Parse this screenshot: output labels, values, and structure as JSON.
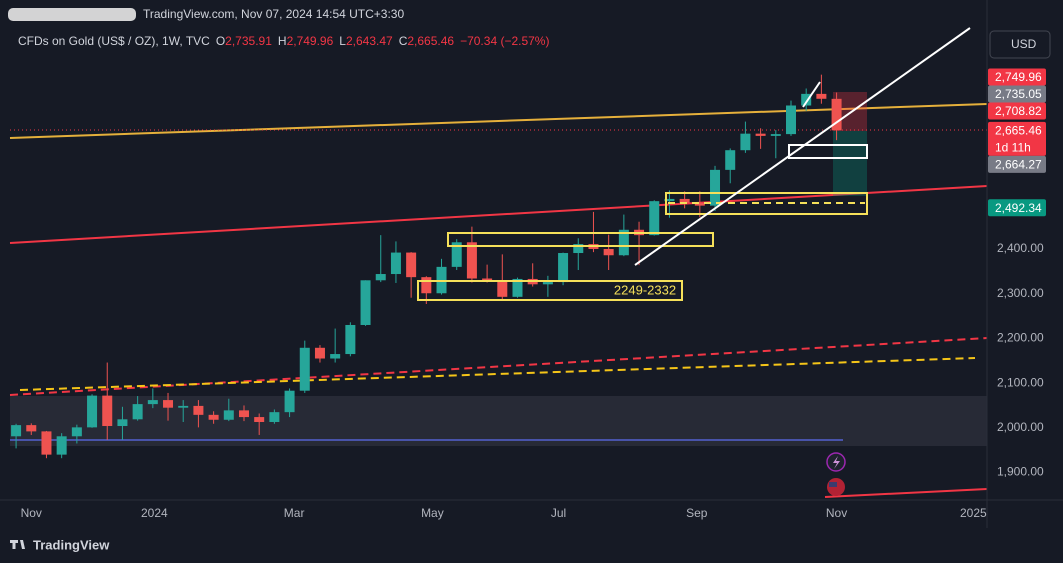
{
  "chart_data": {
    "type": "candlestick",
    "header": "TradingView.com, Nov 07, 2024 14:54 UTC+3:30",
    "legend": {
      "name": "CFDs on Gold (US$ / OZ), 1W, TVC",
      "ohlc": [
        {
          "key": "O",
          "value": "2,735.91"
        },
        {
          "key": "H",
          "value": "2,749.96"
        },
        {
          "key": "L",
          "value": "2,643.47"
        },
        {
          "key": "C",
          "value": "2,665.46"
        }
      ],
      "change": "−70.34 (−2.57%)"
    },
    "currency": "USD",
    "annotation": "2249-2332",
    "footer": "TradingView",
    "up_color": "#26a69a",
    "down_color": "#ef5350",
    "open": [
      1981,
      2006,
      1992,
      1940,
      1981,
      2001,
      2072,
      2004,
      2019,
      2053,
      2062,
      2045,
      2049,
      2029,
      2018,
      2039,
      2024,
      2013,
      2035,
      2083,
      2179,
      2155,
      2165,
      2230,
      2330,
      2344,
      2392,
      2337,
      2301,
      2360,
      2415,
      2334,
      2327,
      2293,
      2333,
      2321,
      2326,
      2391,
      2411,
      2400,
      2386,
      2443,
      2431,
      2507,
      2512,
      2503,
      2497,
      2577,
      2621,
      2658,
      2653,
      2657,
      2721,
      2747,
      2735.91
    ],
    "high": [
      2009,
      2010,
      1993,
      1988,
      2007,
      2075,
      2146,
      2047,
      2071,
      2088,
      2078,
      2062,
      2062,
      2037,
      2065,
      2050,
      2032,
      2041,
      2088,
      2195,
      2185,
      2222,
      2236,
      2330,
      2431,
      2417,
      2393,
      2339,
      2378,
      2422,
      2450,
      2365,
      2388,
      2336,
      2368,
      2340,
      2392,
      2424,
      2483,
      2432,
      2477,
      2461,
      2509,
      2531,
      2529,
      2529,
      2586,
      2625,
      2685,
      2670,
      2666,
      2732,
      2759,
      2790,
      2749.96
    ],
    "low": [
      1954,
      1984,
      1932,
      1932,
      1965,
      2000,
      1973,
      1973,
      2016,
      2044,
      2016,
      2013,
      2001,
      2009,
      2015,
      2015,
      1984,
      2009,
      2024,
      2078,
      2146,
      2146,
      2160,
      2228,
      2326,
      2324,
      2291,
      2277,
      2298,
      2353,
      2325,
      2325,
      2286,
      2291,
      2316,
      2293,
      2319,
      2353,
      2393,
      2353,
      2384,
      2364,
      2430,
      2470,
      2491,
      2471,
      2485,
      2547,
      2615,
      2624,
      2603,
      2653,
      2709,
      2725,
      2643.47
    ],
    "close": [
      2006,
      1992,
      1940,
      1981,
      2001,
      2072,
      2004,
      2019,
      2053,
      2062,
      2045,
      2049,
      2029,
      2018,
      2039,
      2024,
      2013,
      2035,
      2083,
      2179,
      2155,
      2165,
      2230,
      2330,
      2344,
      2392,
      2337,
      2301,
      2360,
      2415,
      2334,
      2327,
      2293,
      2333,
      2321,
      2326,
      2391,
      2411,
      2400,
      2386,
      2443,
      2431,
      2507,
      2512,
      2503,
      2497,
      2577,
      2621,
      2658,
      2653,
      2657,
      2721,
      2747,
      2736,
      2665.46
    ],
    "xlim": [
      -0.4,
      63.9
    ],
    "xticks": [
      {
        "value": 1.0,
        "label": "Nov"
      },
      {
        "value": 9.1,
        "label": "2024"
      },
      {
        "value": 18.3,
        "label": "Mar"
      },
      {
        "value": 27.4,
        "label": "May"
      },
      {
        "value": 35.7,
        "label": "Jul"
      },
      {
        "value": 44.8,
        "label": "Sep"
      },
      {
        "value": 54.0,
        "label": "Nov"
      },
      {
        "value": 63.0,
        "label": "2025"
      }
    ],
    "ylim": [
      1838.5,
      2957
    ],
    "yticks": [
      {
        "value": 1900,
        "label": "1,900.00"
      },
      {
        "value": 2000,
        "label": "2,000.00"
      },
      {
        "value": 2100,
        "label": "2,100.00"
      },
      {
        "value": 2200,
        "label": "2,200.00"
      },
      {
        "value": 2300,
        "label": "2,300.00"
      },
      {
        "value": 2400,
        "label": "2,400.00"
      }
    ],
    "grid": true,
    "price_labels": [
      {
        "value": 2749.96,
        "label": "2,749.96",
        "color": "#f23645"
      },
      {
        "value": 2735.05,
        "label": "2,735.05",
        "color": "#787b86"
      },
      {
        "value": 2708.82,
        "label": "2,708.82",
        "color": "#f23645"
      },
      {
        "value": 2665.46,
        "label": "2,665.46",
        "color": "#f23645",
        "countdown": "1d 11h"
      },
      {
        "value": 2664.27,
        "label": "2,664.27",
        "color": "#787b86"
      },
      {
        "value": 2492.34,
        "label": "2,492.34",
        "color": "#089981"
      }
    ]
  }
}
